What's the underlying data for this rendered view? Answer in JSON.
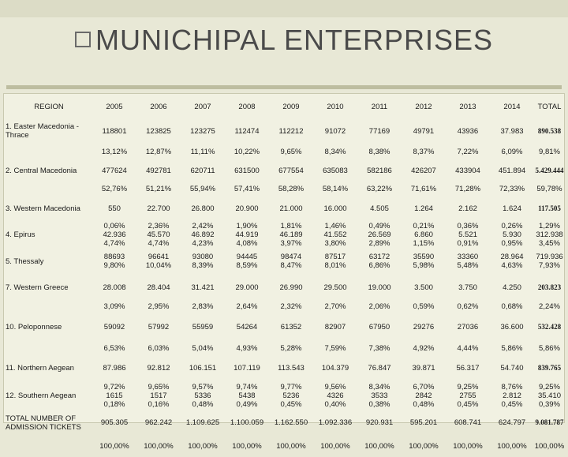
{
  "title": "MUNICHIPAL ENTERPRISES",
  "header": {
    "region": "REGION",
    "years": [
      "2005",
      "2006",
      "2007",
      "2008",
      "2009",
      "2010",
      "2011",
      "2012",
      "2013",
      "2014"
    ],
    "total": "TOTAL"
  },
  "rows": [
    {
      "region": "1. Easter Macedonia - Thrace",
      "values": [
        "118801",
        "123825",
        "123275",
        "112474",
        "112212",
        "91072",
        "77169",
        "49791",
        "43936",
        "37.983"
      ],
      "total": "890.538",
      "bold_total": true
    },
    {
      "region": "",
      "values": [
        "13,12%",
        "12,87%",
        "11,11%",
        "10,22%",
        "9,65%",
        "8,34%",
        "8,38%",
        "8,37%",
        "7,22%",
        "6,09%"
      ],
      "total": "9,81%",
      "bold_total": false
    },
    {
      "region": "2. Central Macedonia",
      "values": [
        "477624",
        "492781",
        "620711",
        "631500",
        "677554",
        "635083",
        "582186",
        "426207",
        "433904",
        "451.894"
      ],
      "total": "5.429.444",
      "bold_total": true
    },
    {
      "region": "",
      "values": [
        "52,76%",
        "51,21%",
        "55,94%",
        "57,41%",
        "58,28%",
        "58,14%",
        "63,22%",
        "71,61%",
        "71,28%",
        "72,33%"
      ],
      "total": "59,78%",
      "bold_total": false
    },
    {
      "region": "3. Western Macedonia",
      "values": [
        "550",
        "22.700",
        "26.800",
        "20.900",
        "21.000",
        "16.000",
        "4.505",
        "1.264",
        "2.162",
        "1.624"
      ],
      "total": "117.505",
      "bold_total": true
    },
    {
      "region": "4. Epirus",
      "values": [
        "0,06%\n42.936\n4,74%",
        "2,36%\n45.570\n4,74%",
        "2,42%\n46.892\n4,23%",
        "1,90%\n44.919\n4,08%",
        "1,81%\n46.189\n3,97%",
        "1,46%\n41.552\n3,80%",
        "0,49%\n26.569\n2,89%",
        "0,21%\n6.860\n1,15%",
        "0,36%\n5.521\n0,91%",
        "0,26%\n5.930\n0,95%"
      ],
      "total": "1,29%\n312.938\n3,45%",
      "bold_total": false
    },
    {
      "region": "5. Thessaly",
      "values": [
        "88693\n9,80%",
        "96641\n10,04%",
        "93080\n8,39%",
        "94445\n8,59%",
        "98474\n8,47%",
        "87517\n8,01%",
        "63172\n6,86%",
        "35590\n5,98%",
        "33360\n5,48%",
        "28.964\n4,63%"
      ],
      "total": "719.936\n7,93%",
      "bold_total": false
    },
    {
      "region": "7. Western Greece",
      "values": [
        "28.008",
        "28.404",
        "31.421",
        "29.000",
        "26.990",
        "29.500",
        "19.000",
        "3.500",
        "3.750",
        "4.250"
      ],
      "total": "203.823",
      "bold_total": true
    },
    {
      "region": "",
      "values": [
        "3,09%",
        "2,95%",
        "2,83%",
        "2,64%",
        "2,32%",
        "2,70%",
        "2,06%",
        "0,59%",
        "0,62%",
        "0,68%"
      ],
      "total": "2,24%",
      "bold_total": false
    },
    {
      "region": "10. Peloponnese",
      "values": [
        "59092",
        "57992",
        "55959",
        "54264",
        "61352",
        "82907",
        "67950",
        "29276",
        "27036",
        "36.600"
      ],
      "total": "532.428",
      "bold_total": true
    },
    {
      "region": "",
      "values": [
        "6,53%",
        "6,03%",
        "5,04%",
        "4,93%",
        "5,28%",
        "7,59%",
        "7,38%",
        "4,92%",
        "4,44%",
        "5,86%"
      ],
      "total": "5,86%",
      "bold_total": false
    },
    {
      "region": "11. Northern Aegean",
      "values": [
        "87.986",
        "92.812",
        "106.151",
        "107.119",
        "113.543",
        "104.379",
        "76.847",
        "39.871",
        "56.317",
        "54.740"
      ],
      "total": "839.765",
      "bold_total": true
    },
    {
      "region": "12. Southern Aegean",
      "values": [
        "9,72%\n1615\n0,18%",
        "9,65%\n1517\n0,16%",
        "9,57%\n5336\n0,48%",
        "9,74%\n5438\n0,49%",
        "9,77%\n5236\n0,45%",
        "9,56%\n4326\n0,40%",
        "8,34%\n3533\n0,38%",
        "6,70%\n2842\n0,48%",
        "9,25%\n2755\n0,45%",
        "8,76%\n2.812\n0,45%"
      ],
      "total": "9,25%\n35.410\n0,39%",
      "bold_total": false
    },
    {
      "region": "TOTAL NUMBER OF ADMISSION TICKETS",
      "values": [
        "905.305",
        "962.242",
        "1.109.625",
        "1.100.059",
        "1.162.550",
        "1.092.336",
        "920.931",
        "595.201",
        "608.741",
        "624.797"
      ],
      "total": "9.081.787",
      "bold_total": true
    },
    {
      "region": "",
      "values": [
        "100,00%",
        "100,00%",
        "100,00%",
        "100,00%",
        "100,00%",
        "100,00%",
        "100,00%",
        "100,00%",
        "100,00%",
        "100,00%"
      ],
      "total": "100,00%",
      "bold_total": false
    }
  ]
}
